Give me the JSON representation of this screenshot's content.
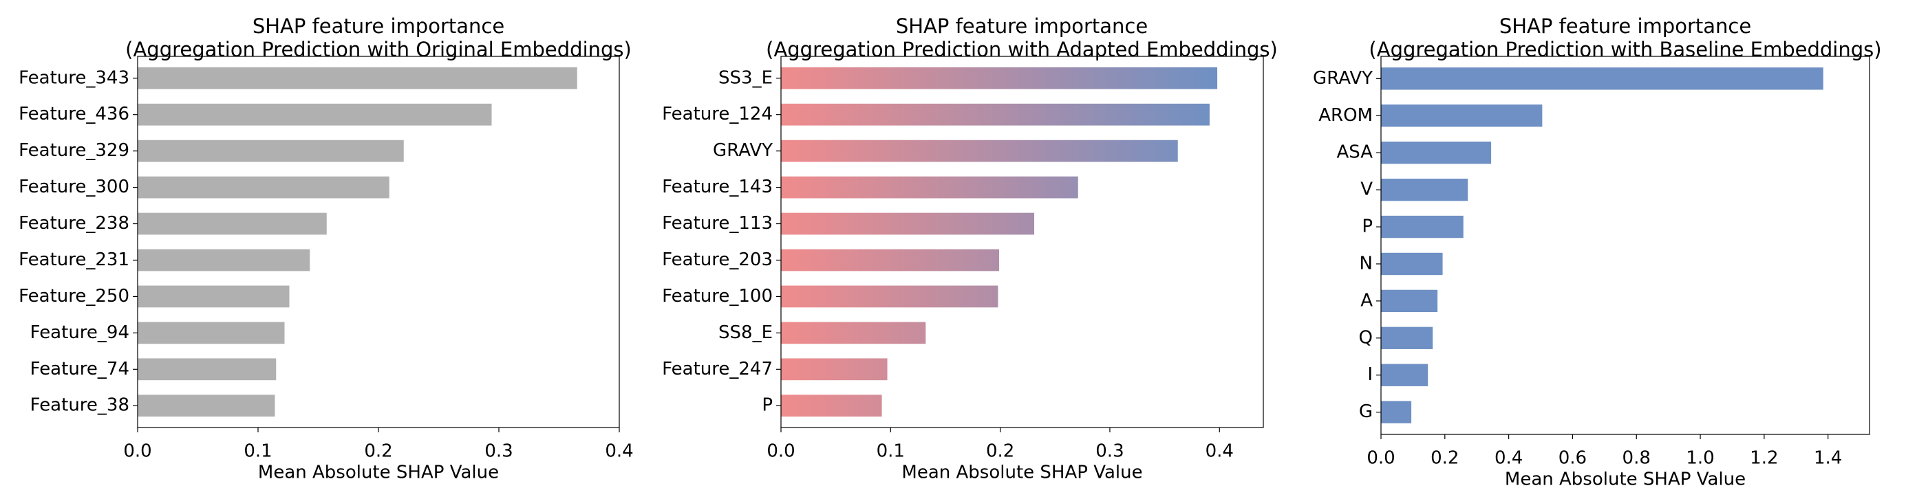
{
  "chart_data": [
    {
      "type": "bar",
      "orientation": "horizontal",
      "title": "SHAP feature importance",
      "subtitle": "(Aggregation Prediction with Original Embeddings)",
      "xlabel": "Mean Absolute SHAP Value",
      "ylabel": "",
      "xlim": [
        0,
        0.4
      ],
      "xticks": [
        0.0,
        0.1,
        0.2,
        0.3,
        0.4
      ],
      "xtick_labels": [
        "0.0",
        "0.1",
        "0.2",
        "0.3",
        "0.4"
      ],
      "bar_fill": "solid",
      "colors": {
        "bar": "#b0b0b0"
      },
      "categories": [
        "Feature_343",
        "Feature_436",
        "Feature_329",
        "Feature_300",
        "Feature_238",
        "Feature_231",
        "Feature_250",
        "Feature_94",
        "Feature_74",
        "Feature_38"
      ],
      "values": [
        0.365,
        0.294,
        0.221,
        0.209,
        0.157,
        0.143,
        0.126,
        0.122,
        0.115,
        0.114
      ]
    },
    {
      "type": "bar",
      "orientation": "horizontal",
      "title": "SHAP feature importance",
      "subtitle": "(Aggregation Prediction with Adapted Embeddings)",
      "xlabel": "Mean Absolute SHAP Value",
      "ylabel": "",
      "xlim": [
        0,
        0.44
      ],
      "xticks": [
        0.0,
        0.1,
        0.2,
        0.3,
        0.4
      ],
      "xtick_labels": [
        "0.0",
        "0.1",
        "0.2",
        "0.3",
        "0.4"
      ],
      "bar_fill": "gradient",
      "colors": {
        "gradient_start": "#f08c8c",
        "gradient_end": "#6e90c4"
      },
      "categories": [
        "SS3_E",
        "Feature_124",
        "GRAVY",
        "Feature_143",
        "Feature_113",
        "Feature_203",
        "Feature_100",
        "SS8_E",
        "Feature_247",
        "P"
      ],
      "values": [
        0.398,
        0.391,
        0.362,
        0.271,
        0.231,
        0.199,
        0.198,
        0.132,
        0.097,
        0.092
      ]
    },
    {
      "type": "bar",
      "orientation": "horizontal",
      "title": "SHAP feature importance",
      "subtitle": "(Aggregation Prediction with Baseline Embeddings)",
      "xlabel": "Mean Absolute SHAP Value",
      "ylabel": "",
      "xlim": [
        0,
        1.53
      ],
      "xticks": [
        0.0,
        0.2,
        0.4,
        0.6,
        0.8,
        1.0,
        1.2,
        1.4
      ],
      "xtick_labels": [
        "0.0",
        "0.2",
        "0.4",
        "0.6",
        "0.8",
        "1.0",
        "1.2",
        "1.4"
      ],
      "bar_fill": "solid",
      "colors": {
        "bar": "#6e90c4"
      },
      "categories": [
        "GRAVY",
        "AROM",
        "ASA",
        "V",
        "P",
        "N",
        "A",
        "Q",
        "I",
        "G"
      ],
      "values": [
        1.385,
        0.505,
        0.345,
        0.272,
        0.258,
        0.193,
        0.177,
        0.162,
        0.147,
        0.095
      ]
    }
  ]
}
